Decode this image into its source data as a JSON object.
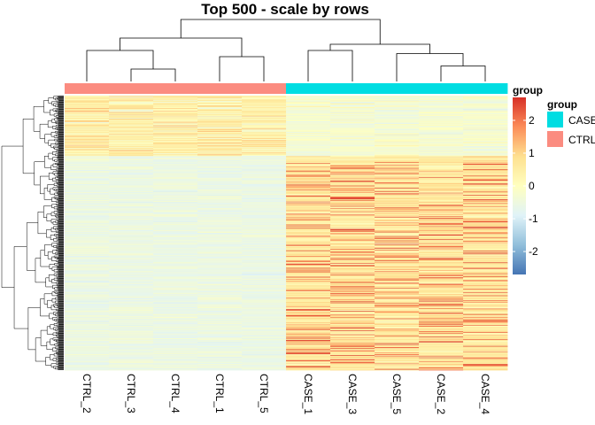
{
  "chart_data": {
    "type": "heatmap",
    "title": "Top 500 - scale by rows",
    "columns": [
      "CTRL_2",
      "CTRL_3",
      "CTRL_4",
      "CTRL_1",
      "CTRL_5",
      "CASE_1",
      "CASE_3",
      "CASE_5",
      "CASE_2",
      "CASE_4"
    ],
    "column_groups": [
      "CTRL",
      "CTRL",
      "CTRL",
      "CTRL",
      "CTRL",
      "CASE",
      "CASE",
      "CASE",
      "CASE",
      "CASE"
    ],
    "n_rows": 500,
    "scale": "row z-score",
    "color_scale": {
      "min": -2.7,
      "max": 2.7,
      "ticks": [
        -2,
        -1,
        0,
        1,
        2
      ],
      "colors": [
        "#4575b4",
        "#91bfdb",
        "#e0f3f8",
        "#ffffbf",
        "#fee090",
        "#fc8d59",
        "#d73027"
      ]
    },
    "annotation_legend": {
      "title": "group",
      "entries": [
        {
          "label": "CASE",
          "color": "#00dde2"
        },
        {
          "label": "CTRL",
          "color": "#fb8c80"
        }
      ]
    },
    "colorbar_title": "group",
    "column_dendrogram": [
      {
        "l": 1,
        "r": 2,
        "h": 0.2
      },
      {
        "l": 3,
        "r": 4,
        "h": 0.4
      },
      {
        "l": 0,
        "r": 10,
        "h": 0.5
      },
      {
        "l": 11,
        "r": 12,
        "h": 0.7
      },
      {
        "l": 8,
        "r": 9,
        "h": 0.25
      },
      {
        "l": 7,
        "r": 14,
        "h": 0.45
      },
      {
        "l": 5,
        "r": 6,
        "h": 0.5
      },
      {
        "l": 16,
        "r": 15,
        "h": 0.6
      },
      {
        "l": 13,
        "r": 17,
        "h": 1.0
      }
    ]
  }
}
